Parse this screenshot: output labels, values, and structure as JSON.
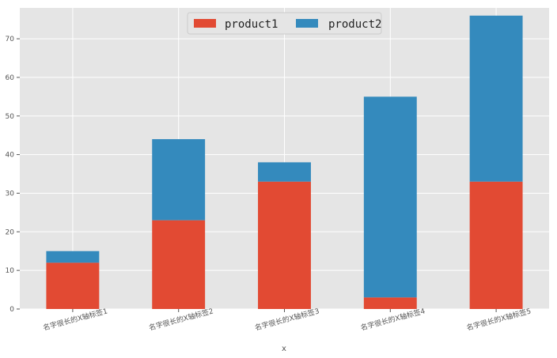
{
  "chart_data": {
    "type": "bar",
    "stacked": true,
    "categories": [
      "名字很长的X轴标签1",
      "名字很长的X轴标签2",
      "名字很长的X轴标签3",
      "名字很长的X轴标签4",
      "名字很长的X轴标签5"
    ],
    "series": [
      {
        "name": "product1",
        "color": "#E24A33",
        "values": [
          12,
          23,
          33,
          3,
          33
        ]
      },
      {
        "name": "product2",
        "color": "#348ABD",
        "values": [
          3,
          21,
          5,
          52,
          43
        ]
      }
    ],
    "xlabel": "x",
    "ylabel": "",
    "ylim": [
      0,
      78
    ],
    "yticks": [
      0,
      10,
      20,
      30,
      40,
      50,
      60,
      70
    ],
    "grid": true,
    "legend_position": "top-center",
    "style": {
      "background": "#E5E5E5",
      "grid_color": "#FFFFFF"
    }
  }
}
